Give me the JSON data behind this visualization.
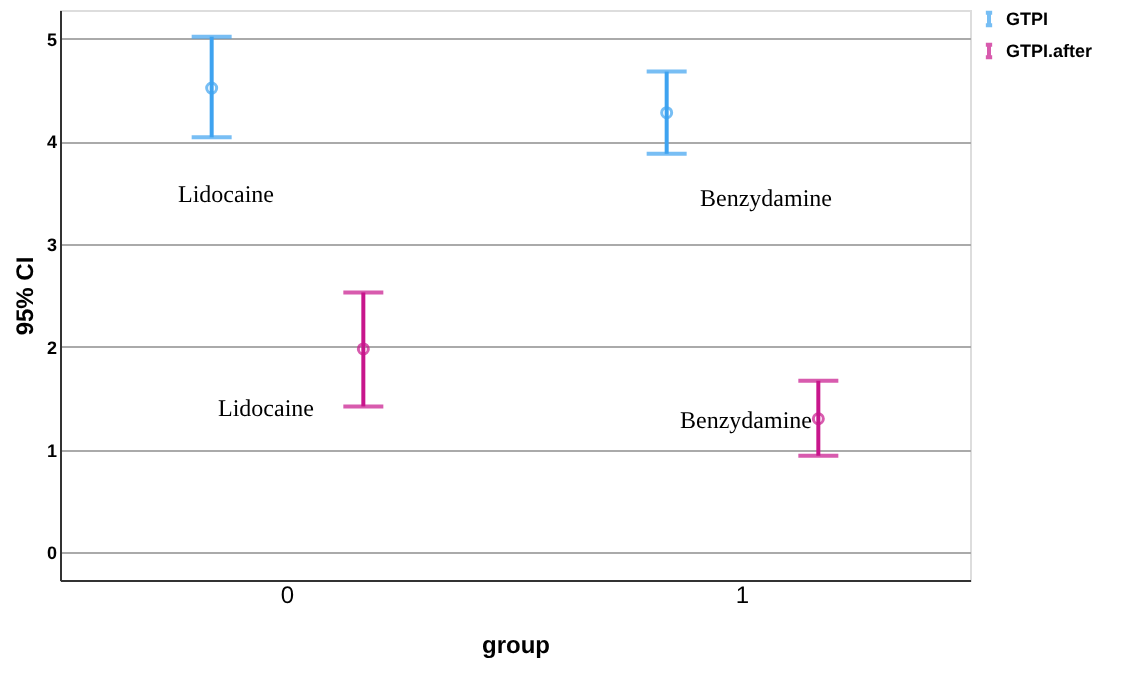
{
  "chart_data": {
    "type": "scatter",
    "xlabel": "group",
    "ylabel": "95% CI",
    "categories": [
      "0",
      "1"
    ],
    "series": [
      {
        "name": "GTPI",
        "color": "#3ea3f0",
        "values": [
          4.52,
          4.28
        ],
        "errors": [
          [
            4.04,
            5.02
          ],
          [
            3.88,
            4.68
          ]
        ]
      },
      {
        "name": "GTPI.after",
        "color": "#c8168c",
        "values": [
          1.98,
          1.3
        ],
        "errors": [
          [
            1.42,
            2.53
          ],
          [
            0.94,
            1.67
          ]
        ]
      }
    ],
    "ylim": [
      -0.27,
      5.28
    ],
    "yticks": [
      0,
      1,
      2,
      3,
      4,
      5
    ],
    "grid": "y",
    "legend": "top right",
    "marker": "circle",
    "annotations": [
      "Lidocaine",
      "Lidocaine",
      "Benzydamine",
      "Benzydamine"
    ]
  }
}
